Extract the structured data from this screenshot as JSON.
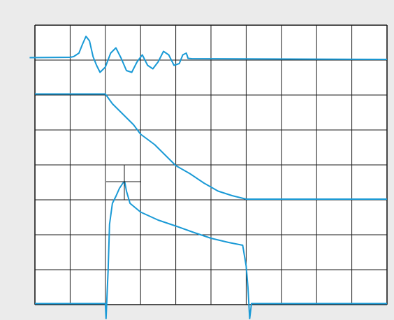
{
  "colors": {
    "background": "#ebebeb",
    "screen": "#ffffff",
    "grid": "#1a1a1a",
    "trace": "#1a9ad6"
  },
  "chart_data": {
    "type": "line",
    "title": "",
    "xlabel": "",
    "ylabel": "",
    "grid": true,
    "x_divisions": 10,
    "y_divisions": 8,
    "xlim": [
      0,
      10
    ],
    "ylim": [
      0,
      8
    ],
    "legend": "none",
    "series": [
      {
        "x": [
          -0.15,
          1.0,
          1.1,
          1.25,
          1.35,
          1.45,
          1.55,
          1.65,
          1.75,
          1.85,
          2.0,
          2.15,
          2.3,
          2.45,
          2.6,
          2.75,
          2.9,
          3.05,
          3.2,
          3.35,
          3.5,
          3.65,
          3.8,
          3.95,
          4.1,
          4.2,
          4.3,
          4.35,
          4.45,
          10.0
        ],
        "y": [
          7.07,
          7.08,
          7.1,
          7.2,
          7.45,
          7.68,
          7.55,
          7.1,
          6.85,
          6.65,
          6.8,
          7.2,
          7.35,
          7.05,
          6.7,
          6.65,
          6.95,
          7.15,
          6.85,
          6.75,
          6.95,
          7.25,
          7.15,
          6.85,
          6.9,
          7.15,
          7.2,
          7.05,
          7.04,
          7.02
        ]
      },
      {
        "x": [
          0.0,
          2.0,
          2.2,
          2.5,
          2.8,
          3.0,
          3.4,
          3.7,
          4.0,
          4.4,
          4.8,
          5.2,
          5.6,
          6.0,
          10.0
        ],
        "y": [
          6.03,
          6.03,
          5.75,
          5.45,
          5.15,
          4.88,
          4.58,
          4.28,
          3.98,
          3.75,
          3.48,
          3.25,
          3.12,
          3.02,
          3.02
        ]
      },
      {
        "x": [
          0.0,
          2.0,
          2.02,
          2.08,
          2.12,
          2.2,
          2.3,
          2.4,
          2.5,
          2.55,
          2.6,
          2.7,
          3.0,
          3.5,
          4.0,
          4.5,
          5.0,
          5.5,
          5.9,
          6.0,
          6.05,
          6.1,
          6.15,
          10.0
        ],
        "y": [
          0.03,
          0.03,
          -0.4,
          1.0,
          2.3,
          2.9,
          3.1,
          3.33,
          3.48,
          3.52,
          3.25,
          2.9,
          2.65,
          2.42,
          2.25,
          2.07,
          1.9,
          1.78,
          1.7,
          1.1,
          0.5,
          -0.4,
          0.03,
          0.03
        ]
      }
    ],
    "cursor": {
      "x": 2.5,
      "y": 3.52
    }
  }
}
